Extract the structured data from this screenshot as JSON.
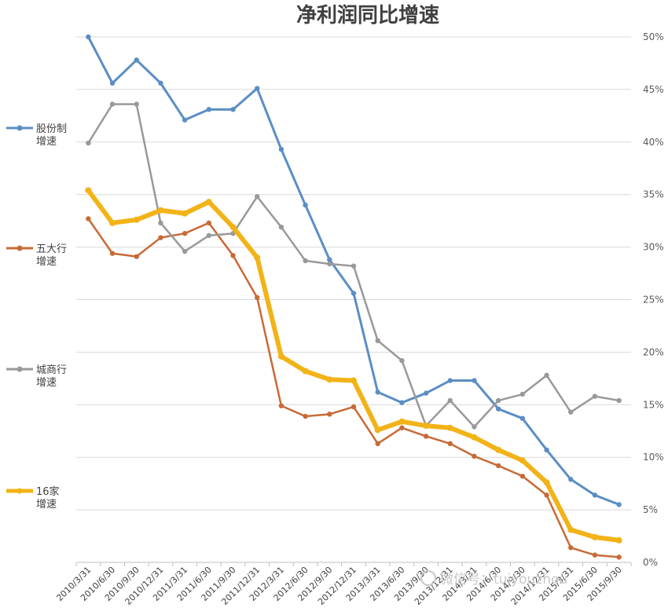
{
  "chart_data": {
    "type": "line",
    "title": "净利润同比增速",
    "categories": [
      "2010/3/31",
      "2010/6/30",
      "2010/9/30",
      "2010/12/31",
      "2011/3/31",
      "2011/6/30",
      "2011/9/30",
      "2011/12/31",
      "2012/3/31",
      "2012/6/30",
      "2012/9/30",
      "2012/12/31",
      "2013/3/31",
      "2013/6/30",
      "2013/9/30",
      "2013/12/31",
      "2014/3/31",
      "2014/6/30",
      "2014/9/30",
      "2014/12/31",
      "2015/3/31",
      "2015/6/30",
      "2015/9/30"
    ],
    "ylim": [
      0,
      50
    ],
    "yticks": [
      "0%",
      "5%",
      "10%",
      "15%",
      "20%",
      "25%",
      "30%",
      "35%",
      "40%",
      "45%",
      "50%"
    ],
    "xlabel": "",
    "ylabel": "",
    "series": [
      {
        "name": "股份制增速",
        "legend_lines": [
          "股份制",
          "增速"
        ],
        "color": "#5b8ec4",
        "width": 3,
        "values": [
          50.0,
          45.6,
          47.8,
          45.6,
          42.1,
          43.1,
          43.1,
          45.1,
          39.3,
          34.0,
          28.8,
          25.6,
          16.2,
          15.2,
          16.1,
          17.3,
          17.3,
          14.6,
          13.7,
          10.7,
          7.9,
          6.4,
          5.5
        ]
      },
      {
        "name": "五大行增速",
        "legend_lines": [
          "五大行",
          "增速"
        ],
        "color": "#c86a36",
        "width": 2.5,
        "values": [
          32.7,
          29.4,
          29.1,
          30.9,
          31.3,
          32.3,
          29.2,
          25.2,
          14.9,
          13.9,
          14.1,
          14.8,
          11.3,
          12.8,
          12.0,
          11.3,
          10.1,
          9.2,
          8.2,
          6.4,
          1.4,
          0.7,
          0.5
        ]
      },
      {
        "name": "城商行增速",
        "legend_lines": [
          "城商行",
          "增速"
        ],
        "color": "#999999",
        "width": 2.5,
        "values": [
          39.9,
          43.6,
          43.6,
          32.3,
          29.6,
          31.1,
          31.3,
          34.8,
          31.9,
          28.7,
          28.4,
          28.2,
          21.1,
          19.2,
          13.0,
          15.4,
          12.9,
          15.4,
          16.0,
          17.8,
          14.3,
          15.8,
          15.4
        ]
      },
      {
        "name": "16家增速",
        "legend_lines": [
          "16家",
          "增速"
        ],
        "color": "#f2b318",
        "width": 6,
        "values": [
          35.4,
          32.3,
          32.6,
          33.5,
          33.2,
          34.3,
          31.9,
          29.0,
          19.6,
          18.2,
          17.4,
          17.3,
          12.6,
          13.4,
          13.0,
          12.8,
          11.9,
          10.7,
          9.7,
          7.6,
          3.1,
          2.4,
          2.1
        ]
      }
    ]
  },
  "watermark": "微信号：tuiyouzhou"
}
